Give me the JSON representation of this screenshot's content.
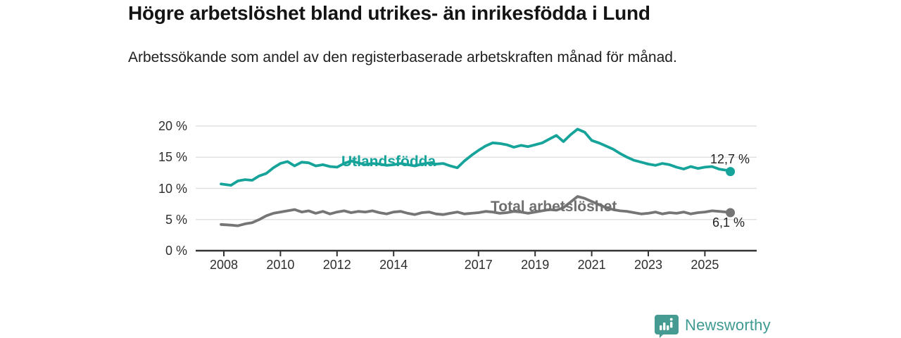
{
  "header": {
    "title": "Högre arbetslöshet bland utrikes- än inrikesfödda i Lund",
    "subtitle": "Arbetssökande som andel av den registerbaserade arbetskraften månad för månad."
  },
  "chart_data": {
    "type": "line",
    "title": "Högre arbetslöshet bland utrikes- än inrikesfödda i Lund",
    "subtitle": "Arbetssökande som andel av den registerbaserade arbetskraften månad för månad.",
    "unit": "%",
    "xlabel": "",
    "ylabel": "",
    "ylim": [
      0,
      20
    ],
    "xlim": [
      2007,
      2026.8
    ],
    "grid": "horizontal",
    "legend_position": "inline-on-lines",
    "y_ticks": [
      {
        "value": 0,
        "label": "0 %"
      },
      {
        "value": 5,
        "label": "5 %"
      },
      {
        "value": 10,
        "label": "10 %"
      },
      {
        "value": 15,
        "label": "15 %"
      },
      {
        "value": 20,
        "label": "20 %"
      }
    ],
    "x_ticks": [
      {
        "value": 2008,
        "label": "2008"
      },
      {
        "value": 2010,
        "label": "2010"
      },
      {
        "value": 2012,
        "label": "2012"
      },
      {
        "value": 2014,
        "label": "2014"
      },
      {
        "value": 2017,
        "label": "2017"
      },
      {
        "value": 2019,
        "label": "2019"
      },
      {
        "value": 2021,
        "label": "2021"
      },
      {
        "value": 2023,
        "label": "2023"
      },
      {
        "value": 2025,
        "label": "2025"
      }
    ],
    "x": [
      2007.9,
      2008.25,
      2008.5,
      2008.75,
      2009,
      2009.25,
      2009.5,
      2009.75,
      2010,
      2010.25,
      2010.5,
      2010.75,
      2011,
      2011.25,
      2011.5,
      2011.75,
      2012,
      2012.25,
      2012.5,
      2012.75,
      2013,
      2013.25,
      2013.5,
      2013.75,
      2014,
      2014.25,
      2014.5,
      2014.75,
      2015,
      2015.25,
      2015.5,
      2015.75,
      2016,
      2016.25,
      2016.5,
      2016.75,
      2017,
      2017.25,
      2017.5,
      2017.75,
      2018,
      2018.25,
      2018.5,
      2018.75,
      2019,
      2019.25,
      2019.5,
      2019.75,
      2020,
      2020.25,
      2020.5,
      2020.75,
      2021,
      2021.25,
      2021.5,
      2021.75,
      2022,
      2022.25,
      2022.5,
      2022.75,
      2023,
      2023.25,
      2023.5,
      2023.75,
      2024,
      2024.25,
      2024.5,
      2024.75,
      2025,
      2025.25,
      2025.5,
      2025.75,
      2025.9
    ],
    "series": [
      {
        "name": "Utlandsfödda",
        "color": "#16a39a",
        "end_value": 12.7,
        "end_label": "12,7 %",
        "values": [
          10.7,
          10.5,
          11.2,
          11.4,
          11.3,
          12.0,
          12.4,
          13.3,
          14.0,
          14.3,
          13.6,
          14.2,
          14.1,
          13.6,
          13.8,
          13.5,
          13.4,
          14.0,
          14.4,
          14.1,
          13.8,
          14.0,
          13.9,
          13.7,
          13.8,
          14.0,
          13.8,
          13.6,
          13.9,
          14.1,
          13.9,
          14.0,
          13.6,
          13.3,
          14.4,
          15.3,
          16.1,
          16.8,
          17.3,
          17.2,
          17.0,
          16.6,
          16.9,
          16.7,
          17.0,
          17.3,
          17.9,
          18.5,
          17.5,
          18.6,
          19.5,
          19.0,
          17.7,
          17.3,
          16.8,
          16.3,
          15.6,
          15.0,
          14.5,
          14.2,
          13.9,
          13.7,
          14.0,
          13.8,
          13.4,
          13.1,
          13.5,
          13.2,
          13.4,
          13.5,
          13.1,
          12.9,
          12.7
        ]
      },
      {
        "name": "Total arbetslöshet",
        "color": "#757575",
        "end_value": 6.1,
        "end_label": "6,1 %",
        "values": [
          4.2,
          4.1,
          4.0,
          4.3,
          4.5,
          5.0,
          5.6,
          6.0,
          6.2,
          6.4,
          6.6,
          6.2,
          6.4,
          6.0,
          6.3,
          5.9,
          6.2,
          6.4,
          6.1,
          6.3,
          6.2,
          6.4,
          6.1,
          5.9,
          6.2,
          6.3,
          6.0,
          5.8,
          6.1,
          6.2,
          5.9,
          5.8,
          6.0,
          6.2,
          5.9,
          6.0,
          6.1,
          6.3,
          6.2,
          6.0,
          6.1,
          6.3,
          6.2,
          6.0,
          6.2,
          6.4,
          6.6,
          6.5,
          6.9,
          7.8,
          8.7,
          8.4,
          7.9,
          7.4,
          6.9,
          6.6,
          6.4,
          6.3,
          6.1,
          5.9,
          6.0,
          6.2,
          5.9,
          6.1,
          6.0,
          6.2,
          5.9,
          6.1,
          6.2,
          6.4,
          6.3,
          6.2,
          6.1
        ]
      }
    ]
  },
  "branding": {
    "name": "Newsworthy",
    "color": "#3f9a91"
  },
  "colors": {
    "accent_teal": "#16a39a",
    "line_gray": "#757575",
    "grid": "#dcdcdc",
    "axis": "#333333",
    "text": "#141414"
  }
}
